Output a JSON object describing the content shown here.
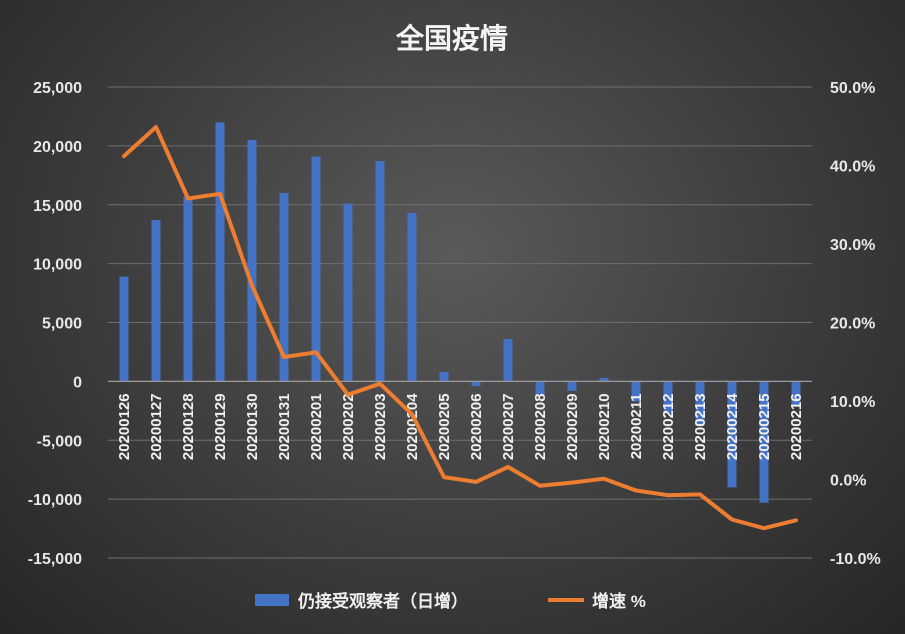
{
  "chart_data": {
    "type": "bar+line",
    "title": "全国疫情",
    "categories": [
      "20200126",
      "20200127",
      "20200128",
      "20200129",
      "20200130",
      "20200131",
      "20200201",
      "20200202",
      "20200203",
      "20200204",
      "20200205",
      "20200206",
      "20200207",
      "20200208",
      "20200209",
      "20200210",
      "20200211",
      "20200212",
      "20200213",
      "20200214",
      "20200215",
      "20200216"
    ],
    "series": [
      {
        "name": "仍接受观察者（日增）",
        "type": "bar",
        "axis": "left",
        "color": "#4472C4",
        "values": [
          8900,
          13700,
          15700,
          22000,
          20500,
          16000,
          19100,
          15100,
          18700,
          14300,
          800,
          -400,
          3600,
          -1200,
          -800,
          300,
          -1700,
          -2700,
          -3800,
          -9000,
          -10300,
          -2100
        ]
      },
      {
        "name": "增速 %",
        "type": "line",
        "axis": "right",
        "color": "#ED7D31",
        "values": [
          41.2,
          44.9,
          35.8,
          36.4,
          24.7,
          15.6,
          16.2,
          10.8,
          12.2,
          8.3,
          0.3,
          -0.3,
          1.6,
          -0.8,
          -0.4,
          0.1,
          -1.4,
          -2.0,
          -1.9,
          -5.1,
          -6.2,
          -5.2
        ]
      }
    ],
    "left_axis": {
      "ylim": [
        -15000,
        25000
      ],
      "ticks": [
        25000,
        20000,
        15000,
        10000,
        5000,
        0,
        -5000,
        -10000,
        -15000
      ],
      "tick_labels": [
        "25,000",
        "20,000",
        "15,000",
        "10,000",
        "5,000",
        "0",
        "-5,000",
        "-10,000",
        "-15,000"
      ]
    },
    "right_axis": {
      "ylim": [
        -10,
        50
      ],
      "ticks": [
        50,
        40,
        30,
        20,
        10,
        0,
        -10
      ],
      "tick_labels": [
        "50.0%",
        "40.0%",
        "30.0%",
        "20.0%",
        "10.0%",
        "0.0%",
        "-10.0%"
      ]
    },
    "legend": "bottom",
    "grid": true
  }
}
